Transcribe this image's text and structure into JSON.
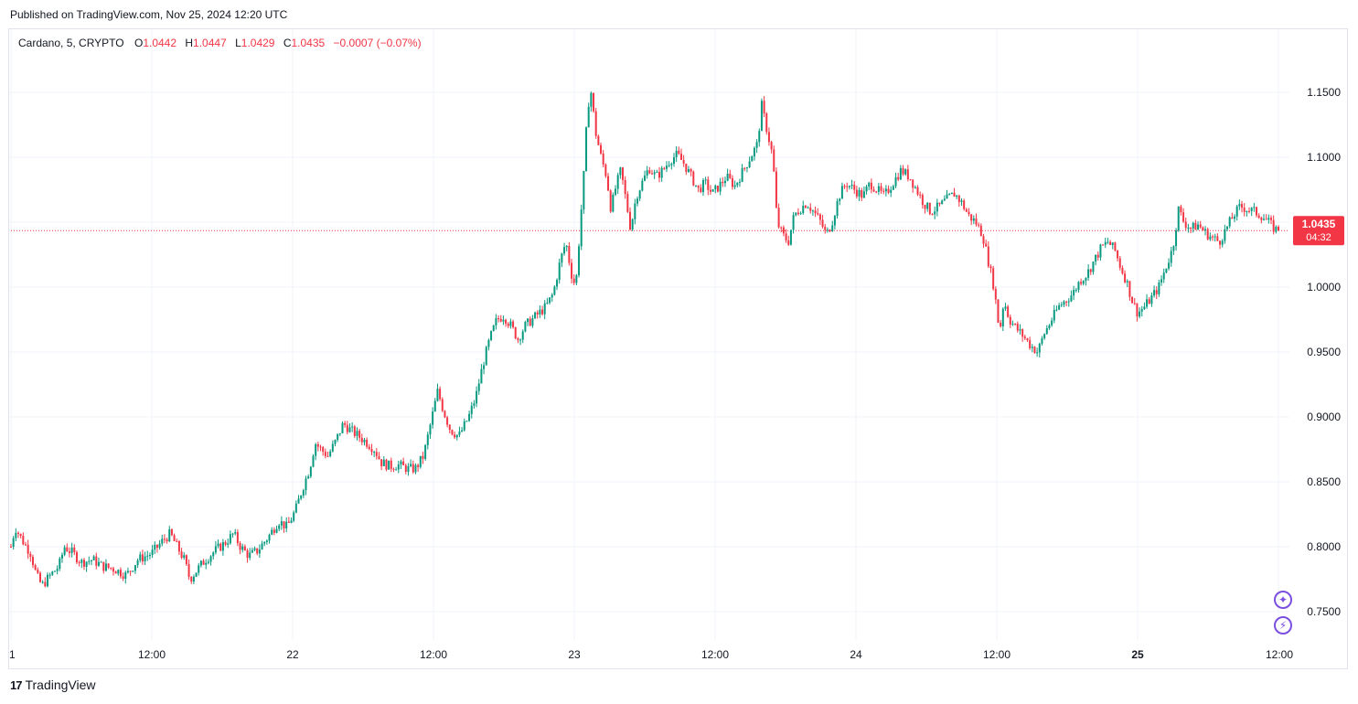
{
  "header": {
    "published": "Published on TradingView.com, Nov 25, 2024 12:20 UTC"
  },
  "legend": {
    "symbol": "Cardano, 5, CRYPTO",
    "o_label": "O",
    "o_value": "1.0442",
    "h_label": "H",
    "h_value": "1.0447",
    "l_label": "L",
    "l_value": "1.0429",
    "c_label": "C",
    "c_value": "1.0435",
    "change": "−0.0007 (−0.07%)"
  },
  "price_tag": {
    "price": "1.0435",
    "countdown": "04:32"
  },
  "footer": {
    "brand": "TradingView"
  },
  "icons": [
    "sparkle-icon",
    "lightning-icon"
  ],
  "colors": {
    "up": "#089981",
    "down": "#f23645",
    "grid": "#f0f3fa",
    "axis_text": "#131722",
    "accent": "#7b4fe0"
  },
  "chart_data": {
    "type": "candlestick",
    "symbol": "Cardano, 5, CRYPTO",
    "ylim": [
      0.72,
      1.18
    ],
    "y_ticks": [
      0.75,
      0.8,
      0.85,
      0.9,
      0.95,
      1.0,
      1.05,
      1.1,
      1.15
    ],
    "y_tick_labels": [
      "0.7500",
      "0.8000",
      "0.8500",
      "0.9000",
      "0.9500",
      "1.0000",
      "1.0500",
      "1.1000",
      "1.1500"
    ],
    "x_range_hours": [
      0,
      90
    ],
    "x_ticks": [
      {
        "label": "1",
        "t": 0,
        "bold": false
      },
      {
        "label": "12:00",
        "t": 10,
        "bold": false
      },
      {
        "label": "22",
        "t": 20,
        "bold": false
      },
      {
        "label": "12:00",
        "t": 30,
        "bold": false
      },
      {
        "label": "23",
        "t": 40,
        "bold": false
      },
      {
        "label": "12:00",
        "t": 50,
        "bold": false
      },
      {
        "label": "24",
        "t": 60,
        "bold": false
      },
      {
        "label": "12:00",
        "t": 70,
        "bold": false
      },
      {
        "label": "25",
        "t": 80,
        "bold": true
      },
      {
        "label": "12:00",
        "t": 90,
        "bold": false
      }
    ],
    "last_price": 1.0435,
    "close_path": [
      [
        0.0,
        0.8
      ],
      [
        0.3,
        0.815
      ],
      [
        0.8,
        0.805
      ],
      [
        1.4,
        0.795
      ],
      [
        1.8,
        0.778
      ],
      [
        2.2,
        0.77
      ],
      [
        2.8,
        0.778
      ],
      [
        3.4,
        0.785
      ],
      [
        3.8,
        0.8
      ],
      [
        4.4,
        0.795
      ],
      [
        5.0,
        0.788
      ],
      [
        5.8,
        0.79
      ],
      [
        6.5,
        0.785
      ],
      [
        7.3,
        0.783
      ],
      [
        8.2,
        0.778
      ],
      [
        9.0,
        0.79
      ],
      [
        10.0,
        0.795
      ],
      [
        10.8,
        0.805
      ],
      [
        11.3,
        0.81
      ],
      [
        11.8,
        0.8
      ],
      [
        12.3,
        0.79
      ],
      [
        12.7,
        0.775
      ],
      [
        13.2,
        0.782
      ],
      [
        13.8,
        0.79
      ],
      [
        14.5,
        0.797
      ],
      [
        15.2,
        0.803
      ],
      [
        15.8,
        0.81
      ],
      [
        16.3,
        0.8
      ],
      [
        16.9,
        0.793
      ],
      [
        17.5,
        0.797
      ],
      [
        18.3,
        0.808
      ],
      [
        19.0,
        0.82
      ],
      [
        19.6,
        0.815
      ],
      [
        20.2,
        0.828
      ],
      [
        20.7,
        0.845
      ],
      [
        21.2,
        0.86
      ],
      [
        21.6,
        0.88
      ],
      [
        22.0,
        0.875
      ],
      [
        22.5,
        0.87
      ],
      [
        23.0,
        0.88
      ],
      [
        23.6,
        0.895
      ],
      [
        24.1,
        0.89
      ],
      [
        24.7,
        0.885
      ],
      [
        25.3,
        0.88
      ],
      [
        25.8,
        0.875
      ],
      [
        26.3,
        0.865
      ],
      [
        26.9,
        0.862
      ],
      [
        27.5,
        0.863
      ],
      [
        28.2,
        0.86
      ],
      [
        28.7,
        0.86
      ],
      [
        29.3,
        0.87
      ],
      [
        29.8,
        0.895
      ],
      [
        30.3,
        0.92
      ],
      [
        30.7,
        0.905
      ],
      [
        31.2,
        0.89
      ],
      [
        31.8,
        0.885
      ],
      [
        32.5,
        0.9
      ],
      [
        33.0,
        0.915
      ],
      [
        33.5,
        0.94
      ],
      [
        34.0,
        0.96
      ],
      [
        34.5,
        0.975
      ],
      [
        35.0,
        0.978
      ],
      [
        35.5,
        0.97
      ],
      [
        36.0,
        0.96
      ],
      [
        36.5,
        0.97
      ],
      [
        37.0,
        0.975
      ],
      [
        37.5,
        0.98
      ],
      [
        38.0,
        0.985
      ],
      [
        38.5,
        0.995
      ],
      [
        39.0,
        1.02
      ],
      [
        39.4,
        1.035
      ],
      [
        39.8,
        1.01
      ],
      [
        40.1,
        1.0
      ],
      [
        40.4,
        1.045
      ],
      [
        40.7,
        1.09
      ],
      [
        40.95,
        1.14
      ],
      [
        41.2,
        1.15
      ],
      [
        41.5,
        1.12
      ],
      [
        41.9,
        1.1
      ],
      [
        42.3,
        1.085
      ],
      [
        42.6,
        1.06
      ],
      [
        42.9,
        1.075
      ],
      [
        43.3,
        1.09
      ],
      [
        43.7,
        1.065
      ],
      [
        44.0,
        1.045
      ],
      [
        44.4,
        1.07
      ],
      [
        44.8,
        1.08
      ],
      [
        45.3,
        1.092
      ],
      [
        45.8,
        1.085
      ],
      [
        46.3,
        1.09
      ],
      [
        46.8,
        1.098
      ],
      [
        47.3,
        1.102
      ],
      [
        47.8,
        1.095
      ],
      [
        48.3,
        1.085
      ],
      [
        48.8,
        1.075
      ],
      [
        49.3,
        1.08
      ],
      [
        49.8,
        1.072
      ],
      [
        50.3,
        1.078
      ],
      [
        50.8,
        1.085
      ],
      [
        51.4,
        1.078
      ],
      [
        52.0,
        1.09
      ],
      [
        52.5,
        1.1
      ],
      [
        53.0,
        1.11
      ],
      [
        53.3,
        1.14
      ],
      [
        53.7,
        1.12
      ],
      [
        54.1,
        1.1
      ],
      [
        54.4,
        1.05
      ],
      [
        54.8,
        1.04
      ],
      [
        55.2,
        1.035
      ],
      [
        55.6,
        1.055
      ],
      [
        56.0,
        1.06
      ],
      [
        56.5,
        1.065
      ],
      [
        57.0,
        1.058
      ],
      [
        57.5,
        1.05
      ],
      [
        57.9,
        1.04
      ],
      [
        58.3,
        1.05
      ],
      [
        58.8,
        1.07
      ],
      [
        59.3,
        1.08
      ],
      [
        59.9,
        1.075
      ],
      [
        60.5,
        1.07
      ],
      [
        61.0,
        1.08
      ],
      [
        61.5,
        1.075
      ],
      [
        62.0,
        1.07
      ],
      [
        62.6,
        1.08
      ],
      [
        63.2,
        1.09
      ],
      [
        63.8,
        1.085
      ],
      [
        64.3,
        1.075
      ],
      [
        64.8,
        1.065
      ],
      [
        65.3,
        1.058
      ],
      [
        65.9,
        1.062
      ],
      [
        66.5,
        1.068
      ],
      [
        67.0,
        1.072
      ],
      [
        67.5,
        1.065
      ],
      [
        68.0,
        1.055
      ],
      [
        68.5,
        1.05
      ],
      [
        69.0,
        1.04
      ],
      [
        69.4,
        1.02
      ],
      [
        69.8,
        1.0
      ],
      [
        70.2,
        0.965
      ],
      [
        70.5,
        0.99
      ],
      [
        70.9,
        0.975
      ],
      [
        71.4,
        0.968
      ],
      [
        71.9,
        0.962
      ],
      [
        72.4,
        0.955
      ],
      [
        72.9,
        0.95
      ],
      [
        73.4,
        0.965
      ],
      [
        73.9,
        0.975
      ],
      [
        74.4,
        0.985
      ],
      [
        74.9,
        0.99
      ],
      [
        75.4,
        0.995
      ],
      [
        75.9,
        1.005
      ],
      [
        76.4,
        1.01
      ],
      [
        76.9,
        1.02
      ],
      [
        77.4,
        1.03
      ],
      [
        77.9,
        1.035
      ],
      [
        78.4,
        1.028
      ],
      [
        78.8,
        1.015
      ],
      [
        79.2,
        1.005
      ],
      [
        79.6,
        0.99
      ],
      [
        80.0,
        0.98
      ],
      [
        80.5,
        0.985
      ],
      [
        81.0,
        0.992
      ],
      [
        81.5,
        1.0
      ],
      [
        82.0,
        1.015
      ],
      [
        82.5,
        1.03
      ],
      [
        82.9,
        1.06
      ],
      [
        83.3,
        1.05
      ],
      [
        83.8,
        1.045
      ],
      [
        84.3,
        1.048
      ],
      [
        84.8,
        1.042
      ],
      [
        85.3,
        1.038
      ],
      [
        85.8,
        1.035
      ],
      [
        86.3,
        1.045
      ],
      [
        86.8,
        1.055
      ],
      [
        87.3,
        1.062
      ],
      [
        87.8,
        1.06
      ],
      [
        88.3,
        1.058
      ],
      [
        88.8,
        1.055
      ],
      [
        89.3,
        1.05
      ],
      [
        89.7,
        1.045
      ],
      [
        90.0,
        1.0435
      ]
    ]
  }
}
